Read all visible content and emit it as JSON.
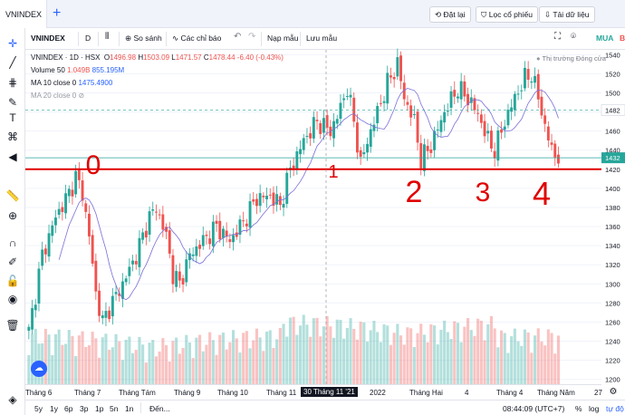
{
  "tab": {
    "label": "VNINDEX"
  },
  "top_buttons": {
    "undo": "Đặt lại",
    "stock_filter": "Lọc cổ phiếu",
    "download": "Tải dữ liệu"
  },
  "toolbar": {
    "symbol": "VNINDEX",
    "interval": "D",
    "compare": "So sánh",
    "indicators": "Các chỉ báo",
    "templates": "Nạp mẫu",
    "save_template": "Lưu mẫu",
    "buy": "MUA",
    "sell": "BÁ"
  },
  "legend": {
    "title": "VNINDEX · 1D · HSX",
    "o_label": "O",
    "o_value": "1496.98",
    "h_label": "H",
    "h_value": "1503.09",
    "l_label": "L",
    "l_value": "1471.57",
    "c_label": "C",
    "c_value": "1478.44",
    "change": "-6.40 (-0.43%)",
    "volume_label": "Volume 50",
    "volume_v1": "1.049B",
    "volume_v2": "855.195M",
    "ma10_label": "MA 10 close 0",
    "ma10_value": "1475.4900",
    "ma20_label": "MA 20 close 0",
    "market_status": "Thị trường Đóng cửa"
  },
  "price_axis": {
    "ticks": [
      "1540",
      "1520",
      "1500",
      "1480",
      "1460",
      "1440",
      "1420",
      "1400",
      "1380",
      "1360",
      "1340",
      "1320",
      "1300",
      "1280",
      "1260",
      "1240",
      "1220",
      "1200"
    ],
    "last_price": "1482",
    "current_price": "1432"
  },
  "time_axis": {
    "labels": [
      "Tháng 6",
      "Tháng 7",
      "Tháng Tám",
      "Tháng 9",
      "Tháng 10",
      "Tháng 11",
      "2022",
      "Tháng Hai",
      "4",
      "Tháng 4",
      "Tháng Năm",
      "27"
    ],
    "crosshair_label": "30 Tháng 11 '21"
  },
  "annotations": [
    "0",
    "1",
    "2",
    "3",
    "4"
  ],
  "bottom_bar": {
    "ranges": [
      "5y",
      "1y",
      "6p",
      "3p",
      "1p",
      "5n",
      "1n"
    ],
    "goto": "Đến...",
    "clock": "08:44:09 (UTC+7)",
    "percent": "%",
    "log": "log",
    "auto": "tự độ"
  },
  "colors": {
    "up": "#26a69a",
    "down": "#ef5350",
    "ma": "#7a6ed8",
    "line": "#e00000",
    "accent": "#2962ff"
  },
  "chart_data": {
    "type": "candlestick",
    "title": "VNINDEX · 1D · HSX",
    "ylim": [
      1195,
      1545
    ],
    "anchors": [
      {
        "t": 0,
        "p": 1250
      },
      {
        "t": 4,
        "p": 1330
      },
      {
        "t": 8,
        "p": 1370
      },
      {
        "t": 12,
        "p": 1395
      },
      {
        "t": 14,
        "p": 1412
      },
      {
        "t": 16,
        "p": 1395
      },
      {
        "t": 18,
        "p": 1350
      },
      {
        "t": 20,
        "p": 1290
      },
      {
        "t": 22,
        "p": 1260
      },
      {
        "t": 24,
        "p": 1275
      },
      {
        "t": 28,
        "p": 1300
      },
      {
        "t": 32,
        "p": 1330
      },
      {
        "t": 36,
        "p": 1370
      },
      {
        "t": 38,
        "p": 1380
      },
      {
        "t": 41,
        "p": 1350
      },
      {
        "t": 43,
        "p": 1310
      },
      {
        "t": 45,
        "p": 1300
      },
      {
        "t": 48,
        "p": 1330
      },
      {
        "t": 52,
        "p": 1345
      },
      {
        "t": 56,
        "p": 1360
      },
      {
        "t": 60,
        "p": 1345
      },
      {
        "t": 64,
        "p": 1365
      },
      {
        "t": 68,
        "p": 1390
      },
      {
        "t": 72,
        "p": 1392
      },
      {
        "t": 75,
        "p": 1382
      },
      {
        "t": 78,
        "p": 1420
      },
      {
        "t": 82,
        "p": 1450
      },
      {
        "t": 86,
        "p": 1470
      },
      {
        "t": 90,
        "p": 1460
      },
      {
        "t": 92,
        "p": 1475
      },
      {
        "t": 95,
        "p": 1505
      },
      {
        "t": 97,
        "p": 1470
      },
      {
        "t": 99,
        "p": 1425
      },
      {
        "t": 101,
        "p": 1450
      },
      {
        "t": 104,
        "p": 1480
      },
      {
        "t": 107,
        "p": 1510
      },
      {
        "t": 110,
        "p": 1530
      },
      {
        "t": 112,
        "p": 1495
      },
      {
        "t": 115,
        "p": 1470
      },
      {
        "t": 117,
        "p": 1430
      },
      {
        "t": 120,
        "p": 1445
      },
      {
        "t": 124,
        "p": 1480
      },
      {
        "t": 128,
        "p": 1505
      },
      {
        "t": 132,
        "p": 1490
      },
      {
        "t": 135,
        "p": 1470
      },
      {
        "t": 137,
        "p": 1450
      },
      {
        "t": 139,
        "p": 1440
      },
      {
        "t": 142,
        "p": 1470
      },
      {
        "t": 145,
        "p": 1495
      },
      {
        "t": 148,
        "p": 1515
      },
      {
        "t": 150,
        "p": 1520
      },
      {
        "t": 152,
        "p": 1495
      },
      {
        "t": 154,
        "p": 1465
      },
      {
        "t": 156,
        "p": 1440
      },
      {
        "t": 158,
        "p": 1432
      }
    ],
    "support_level": 1420,
    "dashed_level": 1482
  }
}
